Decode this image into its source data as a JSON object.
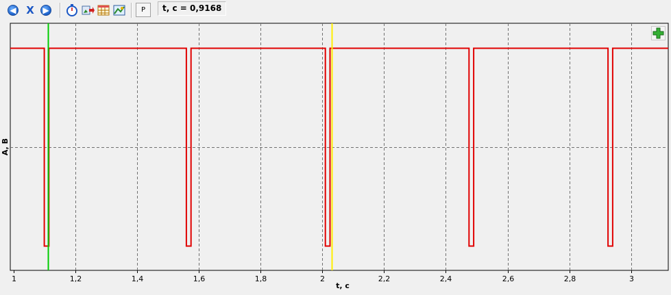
{
  "toolbar": {
    "p_label": "P",
    "readout": "t, c = 0,9168",
    "icons": [
      "back-arrow-icon",
      "close-x-icon",
      "forward-arrow-icon",
      "stopwatch-icon",
      "export-image-icon",
      "table-icon",
      "chart-image-icon"
    ]
  },
  "chart_data": {
    "type": "line",
    "title": "",
    "xlabel": "t, c",
    "ylabel": "A, B",
    "xlim": [
      0.99,
      3.12
    ],
    "ylim": [
      0,
      1
    ],
    "grid": true,
    "x_ticks": [
      1,
      1.2,
      1.4,
      1.6,
      1.8,
      2,
      2.2,
      2.4,
      2.6,
      2.8,
      3
    ],
    "x_tick_labels": [
      "1",
      "1,2",
      "1,4",
      "1,6",
      "1,8",
      "2",
      "2,2",
      "2,4",
      "2,6",
      "2,8",
      "3"
    ],
    "y_grid_levels": [
      0.5
    ],
    "series": [
      {
        "color": "#e00000",
        "high": 0.9,
        "low": 0.1,
        "pulses": [
          [
            1.1,
            1.115
          ],
          [
            1.56,
            1.575
          ],
          [
            2.01,
            2.025
          ],
          [
            2.475,
            2.49
          ],
          [
            2.925,
            2.94
          ]
        ]
      }
    ],
    "cursors": [
      {
        "x": 1.113,
        "color": "#00cc00"
      },
      {
        "x": 2.03,
        "color": "#ffee00"
      }
    ]
  }
}
